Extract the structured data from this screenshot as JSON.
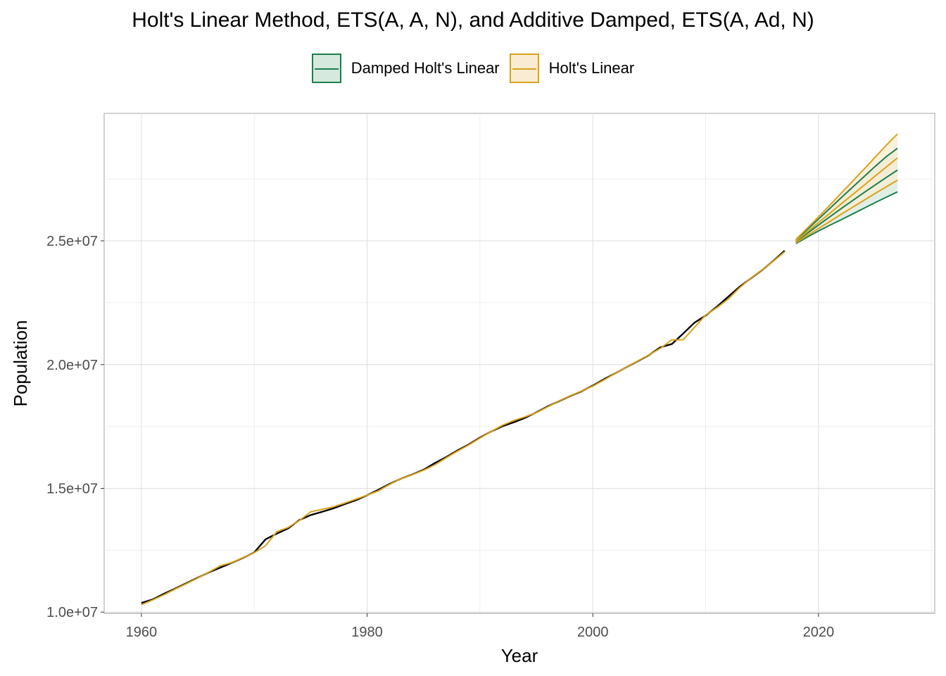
{
  "colors": {
    "damped": "#1b7f4e",
    "holt": "#d9a21b",
    "actual": "#000000",
    "damped_fill": "#d5e9de",
    "holt_fill": "#faecd2"
  },
  "chart_data": {
    "type": "line",
    "title": "Holt's Linear Method, ETS(A, A, N), and Additive Damped, ETS(A, Ad, N)",
    "xlabel": "Year",
    "ylabel": "Population",
    "xlim": [
      1956.7,
      2030.3
    ],
    "ylim": [
      9950000,
      30150000
    ],
    "x_ticks": [
      1960,
      1980,
      2000,
      2020
    ],
    "y_ticks": [
      10000000,
      15000000,
      20000000,
      25000000
    ],
    "y_tick_labels": [
      "1.0e+07",
      "1.5e+07",
      "2.0e+07",
      "2.5e+07"
    ],
    "grid": true,
    "legend_position": "top",
    "legend": [
      "Damped Holt's Linear",
      "Holt's Linear"
    ],
    "series": [
      {
        "role": "actual",
        "x": [
          1960,
          1961,
          1962,
          1963,
          1964,
          1965,
          1966,
          1967,
          1968,
          1969,
          1970,
          1971,
          1972,
          1973,
          1974,
          1975,
          1976,
          1977,
          1978,
          1979,
          1980,
          1981,
          1982,
          1983,
          1984,
          1985,
          1986,
          1987,
          1988,
          1989,
          1990,
          1991,
          1992,
          1993,
          1994,
          1995,
          1996,
          1997,
          1998,
          1999,
          2000,
          2001,
          2002,
          2003,
          2004,
          2005,
          2006,
          2007,
          2008,
          2009,
          2010,
          2011,
          2012,
          2013,
          2014,
          2015,
          2016,
          2017
        ],
        "y": [
          10370000,
          10510000,
          10740000,
          10950000,
          11170000,
          11390000,
          11610000,
          11800000,
          11990000,
          12190000,
          12410000,
          12940000,
          13170000,
          13380000,
          13720000,
          13920000,
          14050000,
          14190000,
          14360000,
          14520000,
          14720000,
          14940000,
          15180000,
          15390000,
          15560000,
          15750000,
          16020000,
          16260000,
          16530000,
          16770000,
          17050000,
          17300000,
          17510000,
          17670000,
          17850000,
          18070000,
          18310000,
          18520000,
          18730000,
          18920000,
          19150000,
          19410000,
          19650000,
          19900000,
          20140000,
          20390000,
          20700000,
          20830000,
          21250000,
          21690000,
          21980000,
          22340000,
          22740000,
          23140000,
          23480000,
          23820000,
          24190000,
          24600000
        ]
      },
      {
        "role": "fitted",
        "x": [
          1960,
          1961,
          1962,
          1963,
          1964,
          1965,
          1966,
          1967,
          1968,
          1969,
          1970,
          1971,
          1972,
          1973,
          1974,
          1975,
          1976,
          1977,
          1978,
          1979,
          1980,
          1981,
          1982,
          1983,
          1984,
          1985,
          1986,
          1987,
          1988,
          1989,
          1990,
          1991,
          1992,
          1993,
          1994,
          1995,
          1996,
          1997,
          1998,
          1999,
          2000,
          2001,
          2002,
          2003,
          2004,
          2005,
          2006,
          2007,
          2008,
          2009,
          2010,
          2011,
          2012,
          2013,
          2014,
          2015,
          2016,
          2017
        ],
        "y": [
          10300000,
          10490000,
          10700000,
          10930000,
          11150000,
          11380000,
          11620000,
          11870000,
          12000000,
          12200000,
          12400000,
          12680000,
          13250000,
          13420000,
          13700000,
          14050000,
          14150000,
          14250000,
          14400000,
          14560000,
          14720000,
          14900000,
          15160000,
          15390000,
          15550000,
          15730000,
          15950000,
          16230000,
          16500000,
          16750000,
          17030000,
          17300000,
          17550000,
          17740000,
          17890000,
          18060000,
          18290000,
          18530000,
          18740000,
          18930000,
          19130000,
          19380000,
          19650000,
          19900000,
          20150000,
          20400000,
          20660000,
          21000000,
          21000000,
          21500000,
          22000000,
          22300000,
          22650000,
          23100000,
          23490000,
          23830000,
          24180000,
          24560000
        ]
      },
      {
        "name": "Damped Holt's Linear",
        "x": [
          2018,
          2019,
          2020,
          2021,
          2022,
          2023,
          2024,
          2025,
          2026,
          2027
        ],
        "y": [
          24960000,
          25300000,
          25640000,
          25970000,
          26300000,
          26620000,
          26940000,
          27250000,
          27560000,
          27860000
        ],
        "lower": [
          24890000,
          25150000,
          25400000,
          25630000,
          25850000,
          26080000,
          26310000,
          26540000,
          26760000,
          26980000
        ],
        "upper": [
          25030000,
          25450000,
          25880000,
          26310000,
          26740000,
          27160000,
          27580000,
          28000000,
          28400000,
          28740000
        ]
      },
      {
        "name": "Holt's Linear",
        "x": [
          2018,
          2019,
          2020,
          2021,
          2022,
          2023,
          2024,
          2025,
          2026,
          2027
        ],
        "y": [
          24990000,
          25360000,
          25740000,
          26110000,
          26490000,
          26860000,
          27230000,
          27610000,
          27980000,
          28350000
        ],
        "lower": [
          24920000,
          25210000,
          25500000,
          25780000,
          26070000,
          26350000,
          26630000,
          26910000,
          27180000,
          27450000
        ],
        "upper": [
          25060000,
          25510000,
          25970000,
          26440000,
          26920000,
          27400000,
          27880000,
          28370000,
          28860000,
          29320000
        ]
      }
    ]
  }
}
